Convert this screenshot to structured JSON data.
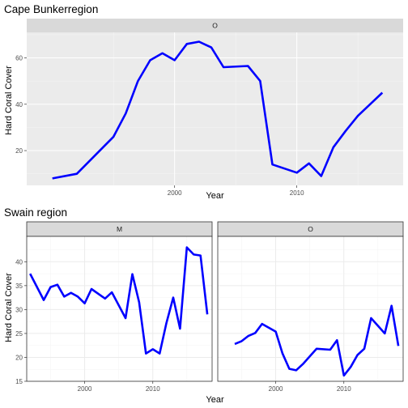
{
  "charts": {
    "top": {
      "title": "Cape Bunkerregion",
      "ylabel": "Hard Coral Cover",
      "xlabel": "Year"
    },
    "bottom": {
      "title": "Swain region",
      "ylabel": "Hard Coral Cover",
      "xlabel": "Year"
    }
  },
  "chart_data": [
    {
      "type": "line",
      "title": "Cape Bunkerregion",
      "xlabel": "Year",
      "ylabel": "Hard Coral Cover",
      "grid": true,
      "line_color": "#0000ff",
      "panels": [
        {
          "strip": "O",
          "xlim": [
            1987.9,
            2018.7
          ],
          "ylim": [
            5.0,
            71.0
          ],
          "x_ticks": [
            2000,
            2010
          ],
          "y_ticks": [
            20,
            40,
            60
          ],
          "series": [
            {
              "x": [
                1990,
                1992,
                1995,
                1996,
                1997,
                1998,
                1999,
                2000,
                2001,
                2002,
                2003,
                2004,
                2006,
                2007,
                2008,
                2010,
                2011,
                2012,
                2013,
                2014,
                2015,
                2017
              ],
              "values": [
                8,
                10,
                26,
                36,
                50,
                59,
                62,
                59,
                66,
                67,
                64.5,
                56,
                56.5,
                50,
                14,
                10.5,
                14.5,
                9,
                21.5,
                28.5,
                35,
                45
              ]
            }
          ]
        }
      ]
    },
    {
      "type": "line",
      "title": "Swain region",
      "xlabel": "Year",
      "ylabel": "Hard Coral Cover",
      "grid": true,
      "line_color": "#0000ff",
      "panels": [
        {
          "strip": "M",
          "xlim": [
            1991.5,
            2018.7
          ],
          "ylim": [
            15.0,
            45.3
          ],
          "x_ticks": [
            2000,
            2010
          ],
          "y_ticks": [
            15,
            20,
            25,
            30,
            35,
            40
          ],
          "series": [
            {
              "x": [
                1992,
                1994,
                1995,
                1996,
                1997,
                1998,
                1999,
                2000,
                2001,
                2003,
                2004,
                2006,
                2007,
                2008,
                2009,
                2010,
                2011,
                2012,
                2013,
                2014,
                2015,
                2016,
                2017,
                2018
              ],
              "values": [
                37.5,
                32.0,
                34.7,
                35.2,
                32.7,
                33.5,
                32.7,
                31.3,
                34.3,
                32.3,
                33.6,
                28.2,
                37.4,
                31.5,
                20.8,
                21.7,
                20.8,
                27.2,
                32.5,
                26.0,
                43.0,
                41.5,
                41.3,
                29.0
              ]
            }
          ]
        },
        {
          "strip": "O",
          "xlim": [
            1991.5,
            2018.7
          ],
          "ylim": [
            15.0,
            45.3
          ],
          "x_ticks": [
            2000,
            2010
          ],
          "y_ticks": [
            15,
            20,
            25,
            30,
            35,
            40
          ],
          "series": [
            {
              "x": [
                1994,
                1995,
                1996,
                1997,
                1998,
                2000,
                2001,
                2002,
                2003,
                2004,
                2006,
                2008,
                2009,
                2010,
                2011,
                2012,
                2013,
                2014,
                2016,
                2017,
                2018
              ],
              "values": [
                22.8,
                23.4,
                24.5,
                25.1,
                27.0,
                25.4,
                20.8,
                17.6,
                17.3,
                18.6,
                21.8,
                21.6,
                23.6,
                16.2,
                18.0,
                20.5,
                21.8,
                28.2,
                25.0,
                30.8,
                22.4
              ]
            }
          ]
        }
      ]
    }
  ]
}
